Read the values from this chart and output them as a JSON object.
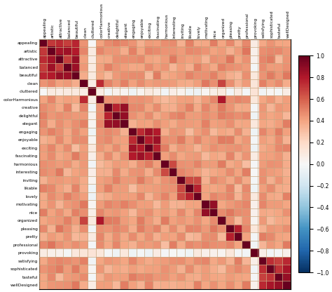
{
  "labels": [
    "appealing",
    "artistic",
    "attractive",
    "balanced",
    "beautiful",
    "clean",
    "cluttered",
    "colorHarmonious",
    "creative",
    "delightful",
    "elegant",
    "engaging",
    "enjoyable",
    "exciting",
    "fascinating",
    "harmonious",
    "interesting",
    "inviting",
    "likable",
    "lovely",
    "motivating",
    "nice",
    "organized",
    "pleasing",
    "pretty",
    "professional",
    "provoking",
    "satisfying",
    "sophisticated",
    "tasteful",
    "wellDesigned"
  ],
  "colorbar_ticks": [
    1.0,
    0.8,
    0.6,
    0.4,
    0.2,
    0.0,
    -0.2,
    -0.4,
    -0.6,
    -0.8,
    -1.0
  ],
  "vmin": -1.0,
  "vmax": 1.0,
  "grid_color": "#c8a882",
  "background_color": "#ffffff",
  "base_corr_low": 0.3,
  "base_corr_high": 0.55,
  "high_corr_low": 0.65,
  "high_corr_high": 0.88,
  "neg_corr_low": -0.05,
  "neg_corr_high": 0.12
}
